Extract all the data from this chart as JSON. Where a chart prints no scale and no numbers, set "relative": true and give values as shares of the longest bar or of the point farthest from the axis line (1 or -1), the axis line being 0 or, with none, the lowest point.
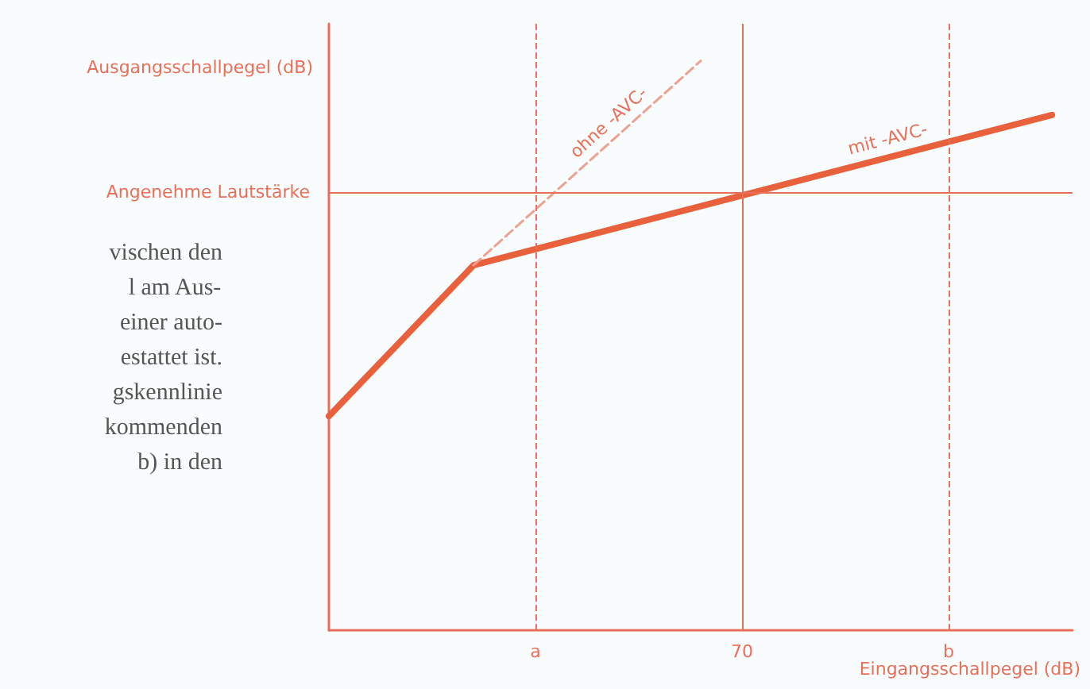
{
  "chart_data": {
    "type": "line",
    "relative": true,
    "xlabel": "Eingangsschallpegel (dB)",
    "ylabel": "Ausgangsschallpegel (dB)",
    "categories": [
      null,
      null,
      null,
      null,
      null,
      null,
      null,
      null,
      null,
      null,
      "a",
      null,
      null,
      null,
      null,
      null,
      null,
      null,
      null,
      null,
      "70",
      null,
      null,
      null,
      null,
      null,
      null,
      null,
      null,
      null,
      "b",
      null,
      null,
      null,
      null,
      null,
      null
    ],
    "series": [
      {
        "name": "mit -AVC-",
        "color": "#e8603c",
        "values": [
          0.376,
          null,
          null,
          null,
          null,
          null,
          null,
          0.641,
          null,
          null,
          null,
          null,
          null,
          null,
          null,
          null,
          null,
          null,
          null,
          null,
          null,
          null,
          null,
          null,
          null,
          null,
          null,
          null,
          null,
          null,
          null,
          null,
          null,
          null,
          null,
          0.905,
          null
        ]
      },
      {
        "name": "ohne -AVC-",
        "color": "#f0a090",
        "line_style": "dashed",
        "values": [
          null,
          null,
          null,
          null,
          null,
          null,
          null,
          0.641,
          null,
          null,
          null,
          null,
          null,
          null,
          null,
          null,
          null,
          null,
          1,
          null,
          null,
          null,
          null,
          null,
          null,
          null,
          null,
          null,
          null,
          null,
          null,
          null,
          null,
          null,
          null,
          null,
          null
        ]
      }
    ],
    "ref_lines": [
      {
        "axis": "y",
        "value": 0.769,
        "label": "Angenehme Lautstärke",
        "color": "#e8705a",
        "line_style": "solid"
      },
      {
        "axis": "x",
        "value": "70",
        "label": null,
        "color": "#e8705a",
        "line_style": "solid"
      },
      {
        "axis": "x",
        "value": "a",
        "label": null,
        "color": "#e8705a",
        "line_style": "dashed"
      },
      {
        "axis": "x",
        "value": "b",
        "label": null,
        "color": "#e8705a",
        "line_style": "dashed"
      }
    ],
    "annotations": [
      "vischen den",
      "l am Aus-",
      "einer auto-",
      "estattet ist.",
      "gskennlinie",
      "kommenden",
      "b) in den"
    ],
    "grid": false,
    "legend": false
  }
}
